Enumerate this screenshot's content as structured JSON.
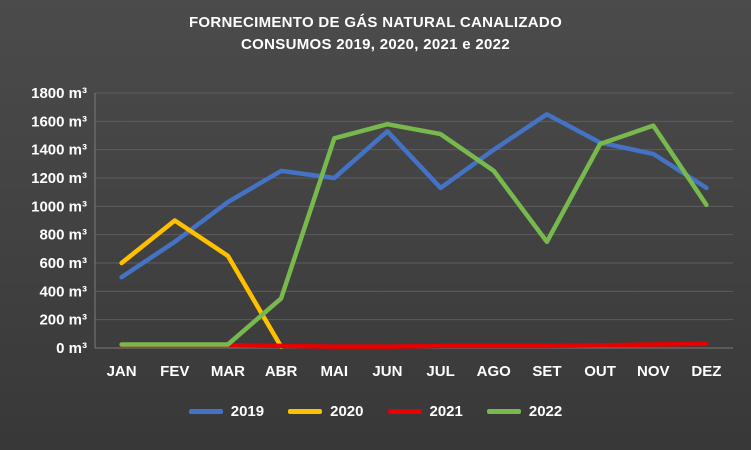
{
  "title": {
    "line1": "FORNECIMENTO DE GÁS NATURAL CANALIZADO",
    "line2": "CONSUMOS 2019, 2020, 2021 e 2022"
  },
  "chart_data": {
    "type": "line",
    "title": "FORNECIMENTO DE GÁS NATURAL CANALIZADO CONSUMOS 2019, 2020, 2021 e 2022",
    "categories": [
      "JAN",
      "FEV",
      "MAR",
      "ABR",
      "MAI",
      "JUN",
      "JUL",
      "AGO",
      "SET",
      "OUT",
      "NOV",
      "DEZ"
    ],
    "series": [
      {
        "name": "2019",
        "color": "#4472C4",
        "values": [
          500,
          750,
          1030,
          1250,
          1200,
          1530,
          1130,
          1400,
          1650,
          1450,
          1370,
          1130
        ]
      },
      {
        "name": "2020",
        "color": "#FFC000",
        "values": [
          600,
          900,
          650,
          10,
          null,
          null,
          null,
          null,
          null,
          null,
          null,
          null
        ]
      },
      {
        "name": "2021",
        "color": "#E60000",
        "values": [
          20,
          20,
          20,
          15,
          10,
          10,
          15,
          15,
          15,
          20,
          25,
          30
        ]
      },
      {
        "name": "2022",
        "color": "#77B94C",
        "values": [
          25,
          25,
          25,
          350,
          1480,
          1580,
          1510,
          1250,
          750,
          1440,
          1570,
          1010
        ]
      }
    ],
    "ylim": [
      0,
      1800
    ],
    "ytick_step": 200,
    "ytick_suffix": " m³",
    "grid": true,
    "legend_position": "bottom",
    "text_color": "#ffffff",
    "background_color": "#414141"
  }
}
